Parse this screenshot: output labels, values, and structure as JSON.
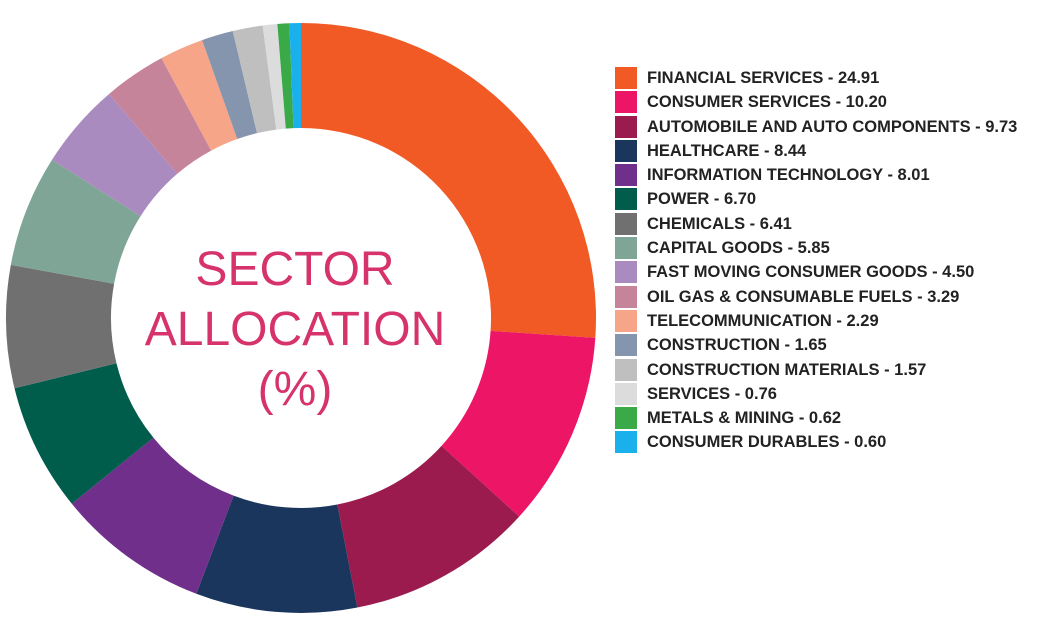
{
  "chart_data": {
    "type": "donut",
    "title": "SECTOR ALLOCATION (%)",
    "categories": [
      "FINANCIAL SERVICES - 24.91",
      "CONSUMER SERVICES - 10.20",
      "AUTOMOBILE AND AUTO COMPONENTS - 9.73",
      "HEALTHCARE - 8.44",
      "INFORMATION TECHNOLOGY - 8.01",
      "POWER - 6.70",
      "CHEMICALS - 6.41",
      "CAPITAL GOODS - 5.85",
      "FAST MOVING CONSUMER GOODS - 4.50",
      "OIL GAS & CONSUMABLE FUELS - 3.29",
      "TELECOMMUNICATION - 2.29",
      "CONSTRUCTION - 1.65",
      "CONSTRUCTION MATERIALS - 1.57",
      "SERVICES - 0.76",
      "METALS & MINING - 0.62",
      "CONSUMER DURABLES - 0.60"
    ],
    "values": [
      24.91,
      10.2,
      9.73,
      8.44,
      8.01,
      6.7,
      6.41,
      5.85,
      4.5,
      3.29,
      2.29,
      1.65,
      1.57,
      0.76,
      0.62,
      0.6
    ],
    "colors": [
      "#f15a24",
      "#ed1566",
      "#9b1b4e",
      "#1b365d",
      "#702f8a",
      "#005c4b",
      "#707070",
      "#7fa597",
      "#a98bc0",
      "#c6849b",
      "#f7a588",
      "#8595ad",
      "#bfbfbf",
      "#dcdcdc",
      "#3aaa49",
      "#1ab0ec"
    ]
  }
}
